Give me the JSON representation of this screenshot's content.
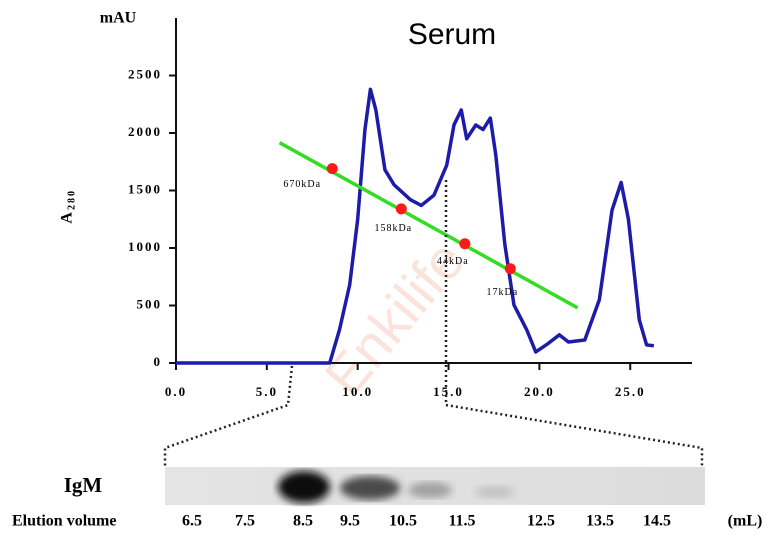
{
  "chart_data": {
    "type": "line",
    "title": "Serum",
    "y_unit": "mAU",
    "ylabel": {
      "text": "A",
      "subscript": "280"
    },
    "xlim": [
      0,
      28.4
    ],
    "ylim": [
      0,
      3000
    ],
    "xticks": [
      {
        "value": 0,
        "label": "0.0"
      },
      {
        "value": 5,
        "label": "5.0"
      },
      {
        "value": 10,
        "label": "10.0"
      },
      {
        "value": 15,
        "label": "15.0"
      },
      {
        "value": 20,
        "label": "20.0"
      },
      {
        "value": 25,
        "label": "25.0"
      }
    ],
    "yticks": [
      0,
      500,
      1000,
      1500,
      2000,
      2500
    ],
    "series": [
      {
        "color": "#1c1ca8",
        "x": [
          0,
          8.46,
          9.0,
          9.56,
          10.0,
          10.4,
          10.7,
          11.0,
          11.5,
          12.0,
          12.9,
          13.5,
          14.2,
          14.9,
          15.3,
          15.7,
          16.0,
          16.5,
          16.9,
          17.3,
          17.6,
          18.1,
          18.6,
          19.3,
          19.8,
          20.4,
          21.1,
          21.6,
          22.5,
          23.3,
          24.0,
          24.5,
          24.9,
          25.5,
          25.9,
          26.3
        ],
        "values": [
          0,
          0,
          290,
          680,
          1250,
          2030,
          2380,
          2200,
          1680,
          1550,
          1420,
          1370,
          1460,
          1720,
          2070,
          2200,
          1950,
          2070,
          2030,
          2130,
          1810,
          1030,
          505,
          290,
          96,
          160,
          245,
          183,
          200,
          550,
          1330,
          1570,
          1250,
          375,
          157,
          150
        ]
      }
    ],
    "fit_line": {
      "color": "#33dd22",
      "x": [
        5.7,
        22.1
      ],
      "values": [
        1916,
        480
      ]
    },
    "markers": {
      "color": "#ff1a1a",
      "x": [
        8.6,
        12.4,
        15.9,
        18.4
      ],
      "values": [
        1690,
        1340,
        1037,
        820
      ],
      "labels": [
        "670kDa",
        "158kDa",
        "44kDa",
        "17kDa"
      ]
    }
  },
  "gel": {
    "label": "IgM",
    "axis_label": "Elution volume",
    "unit": "(mL)",
    "fractions": [
      "6.5",
      "7.5",
      "8.5",
      "9.5",
      "10.5",
      "11.5",
      "12.5",
      "13.5",
      "14.5"
    ]
  },
  "watermark": "Enkilife"
}
